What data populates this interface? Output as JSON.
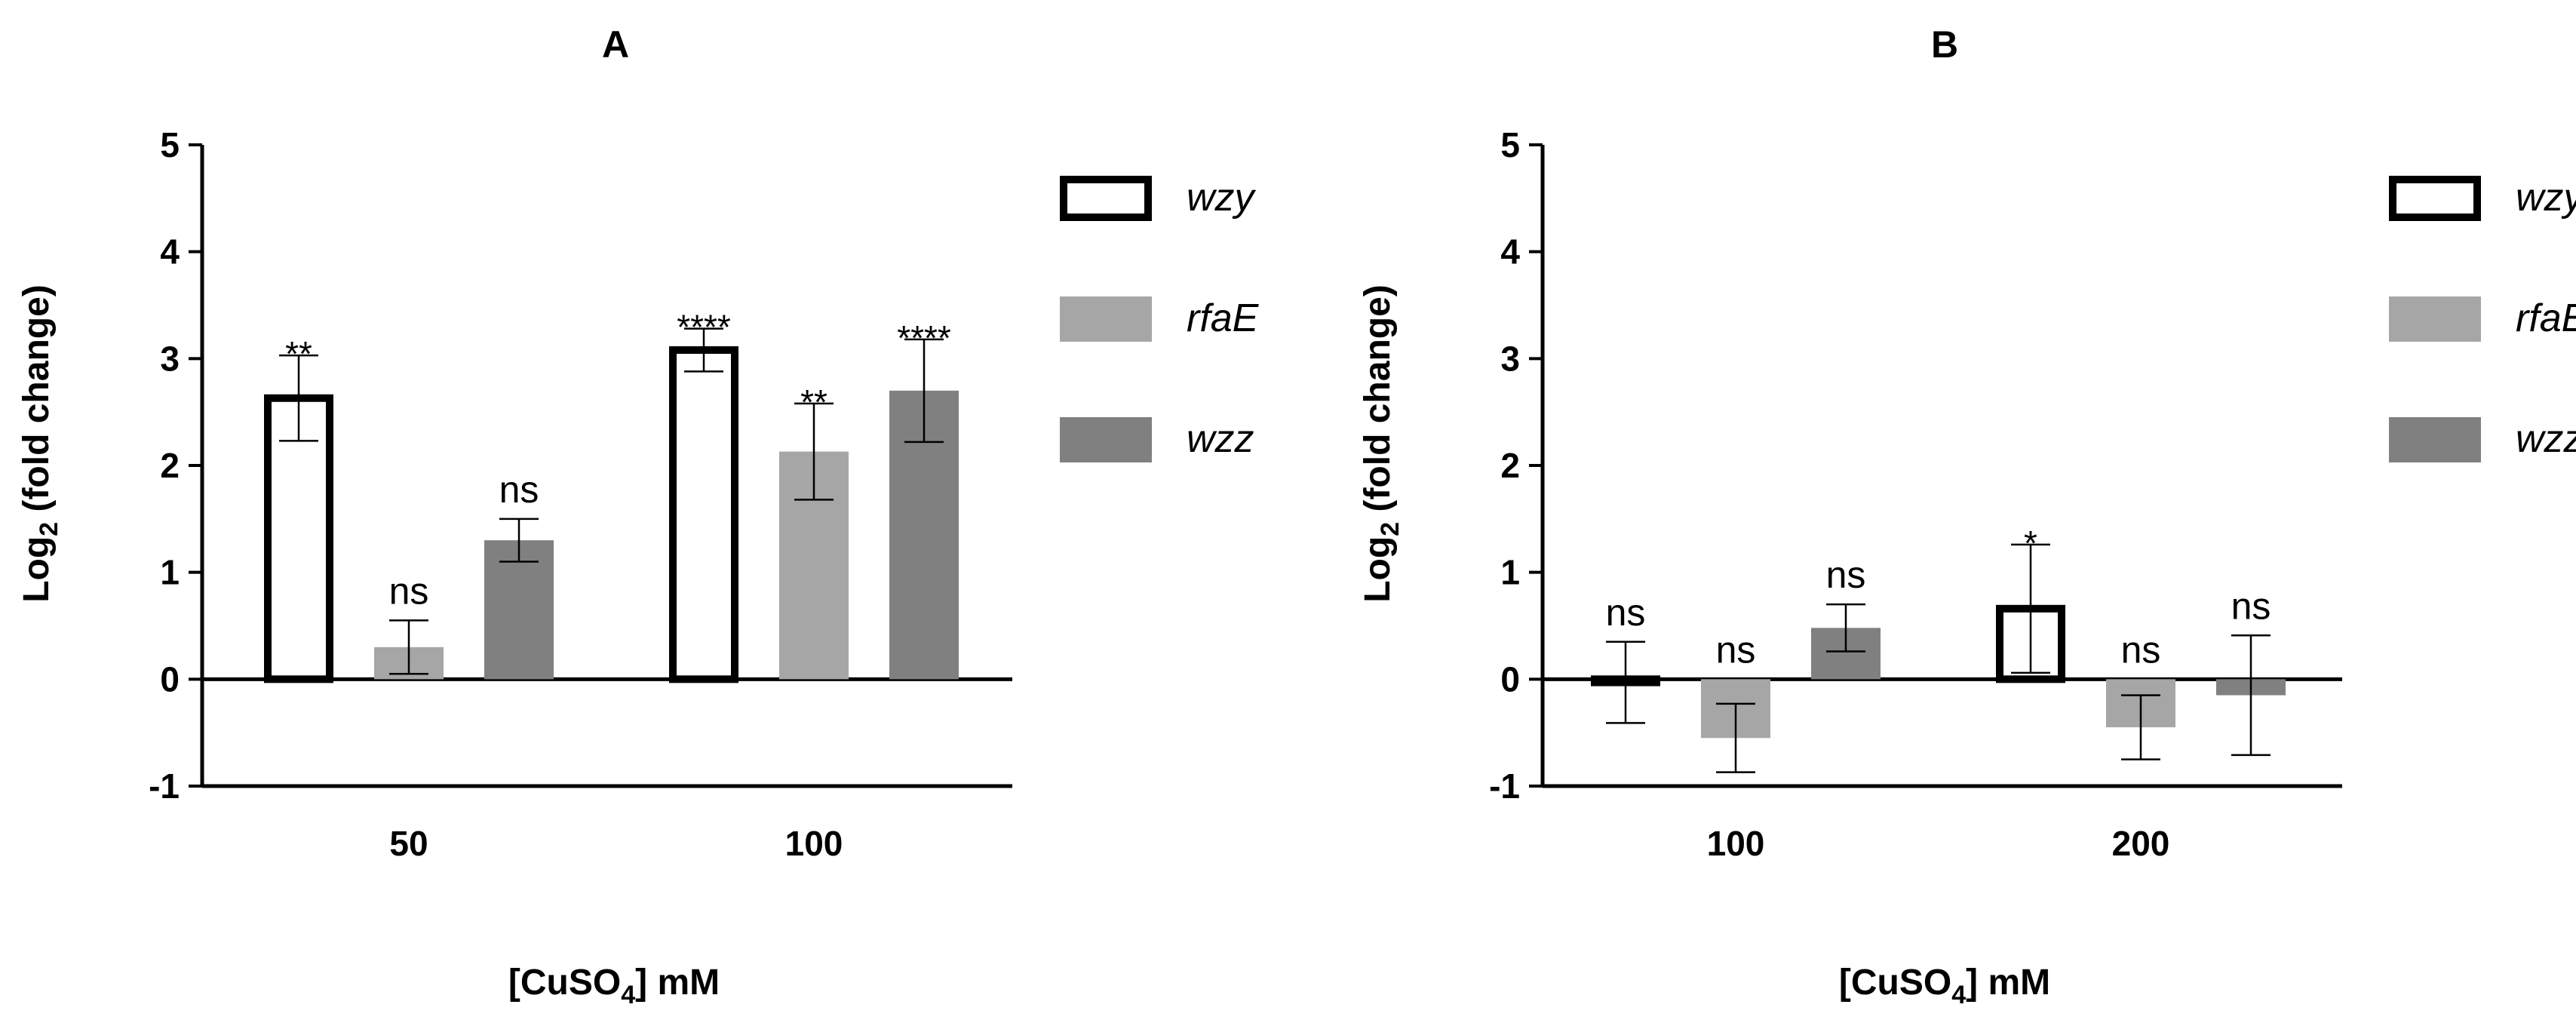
{
  "figure": {
    "title": ""
  },
  "chart_data": [
    {
      "type": "bar",
      "panel_label": "A",
      "title": "A",
      "xlabel_main": "[CuSO",
      "xlabel_sub": "4",
      "xlabel_tail": "] mM",
      "ylabel_main": "Log",
      "ylabel_sub": "2",
      "ylabel_tail": " (fold change)",
      "ylim": [
        -1,
        5
      ],
      "yticks": [
        "-1",
        "0",
        "1",
        "2",
        "3",
        "4",
        "5"
      ],
      "categories": [
        "50",
        "100"
      ],
      "series": [
        {
          "name": "wzy",
          "style": "outline",
          "values": [
            2.63,
            3.08
          ],
          "errors": [
            0.4,
            0.2
          ],
          "labels": [
            "**",
            "****"
          ]
        },
        {
          "name": "rfaE",
          "style": "light",
          "values": [
            0.3,
            2.13
          ],
          "errors": [
            0.25,
            0.45
          ],
          "labels": [
            "ns",
            "**"
          ]
        },
        {
          "name": "wzz",
          "style": "dark",
          "values": [
            1.3,
            2.7
          ],
          "errors": [
            0.2,
            0.48
          ],
          "labels": [
            "ns",
            "****"
          ]
        }
      ],
      "legend": "right"
    },
    {
      "type": "bar",
      "panel_label": "B",
      "title": "B",
      "xlabel_main": "[CuSO",
      "xlabel_sub": "4",
      "xlabel_tail": "] mM",
      "ylabel_main": "Log",
      "ylabel_sub": "2",
      "ylabel_tail": " (fold change)",
      "ylim": [
        -1,
        5
      ],
      "yticks": [
        "-1",
        "0",
        "1",
        "2",
        "3",
        "4",
        "5"
      ],
      "categories": [
        "100",
        "200"
      ],
      "series": [
        {
          "name": "wzy",
          "style": "outline",
          "values": [
            -0.03,
            0.66
          ],
          "errors": [
            0.38,
            0.6
          ],
          "labels": [
            "ns",
            "*"
          ]
        },
        {
          "name": "rfaE",
          "style": "light",
          "values": [
            -0.55,
            -0.45
          ],
          "errors": [
            0.32,
            0.3
          ],
          "labels": [
            "ns",
            "ns"
          ]
        },
        {
          "name": "wzz",
          "style": "dark",
          "values": [
            0.48,
            -0.15
          ],
          "errors": [
            0.22,
            0.56
          ],
          "labels": [
            "ns",
            "ns"
          ]
        }
      ],
      "legend": "right"
    }
  ],
  "colors": {
    "outline": "#000000",
    "light": "#a6a6a6",
    "dark": "#808080",
    "axis": "#000000"
  }
}
